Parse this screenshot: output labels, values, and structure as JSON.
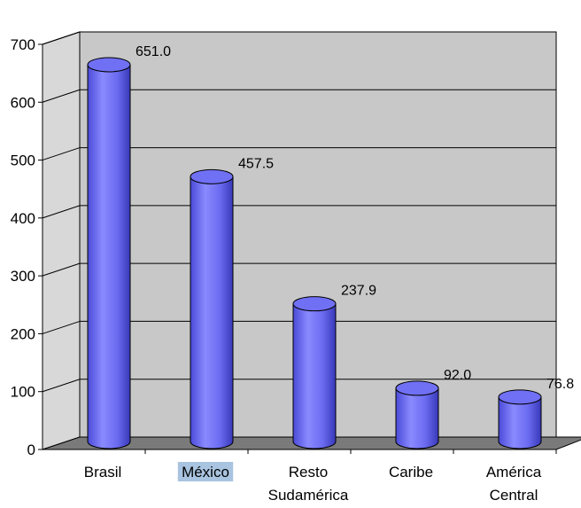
{
  "chart_data": {
    "type": "bar",
    "style": "3d-cylinder",
    "categories": [
      [
        "Brasil"
      ],
      [
        "México"
      ],
      [
        "Resto",
        "Sudamérica"
      ],
      [
        "Caribe"
      ],
      [
        "América",
        "Central"
      ]
    ],
    "values": [
      651.0,
      457.5,
      237.9,
      92.0,
      76.8
    ],
    "value_labels": [
      "651.0",
      "457.5",
      "237.9",
      "92.0",
      "76.8"
    ],
    "ylim": [
      0,
      700
    ],
    "yticks": [
      "0",
      "100",
      "200",
      "300",
      "400",
      "500",
      "600",
      "700"
    ],
    "highlighted_category_index": 1,
    "grid": true,
    "title": "",
    "xlabel": "",
    "ylabel": "",
    "colors": {
      "bar": "#6b6bf2",
      "bar_highlight": "#a8a8ff",
      "bar_shadow": "#3b3bc0",
      "back_wall": "#c8c8c8",
      "floor": "#7a7a7a",
      "gridline": "#000000",
      "label_highlight": "#a9c4e0"
    }
  }
}
